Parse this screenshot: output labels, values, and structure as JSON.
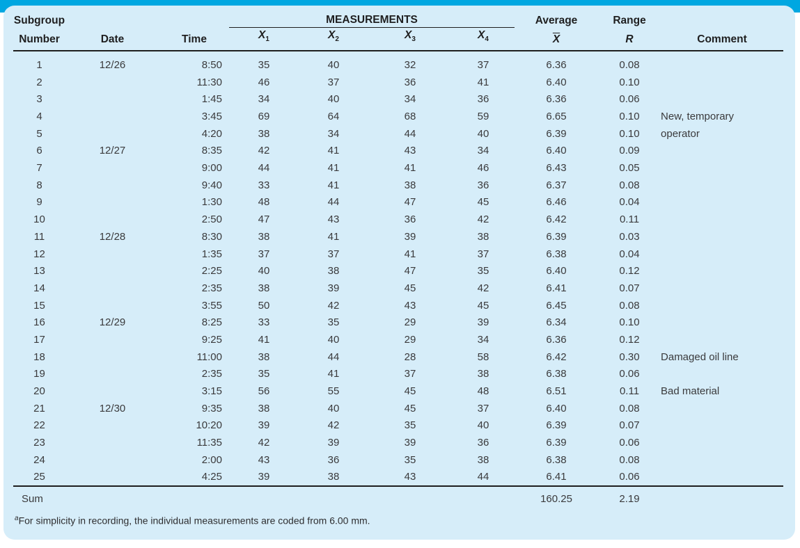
{
  "colors": {
    "top_bar": "#00A7E1",
    "panel_bg": "#D6EDF9",
    "rule": "#1E1E1E",
    "header_text": "#1F1F20",
    "body_text": "#3A3A3C"
  },
  "header": {
    "col1_line1": "Subgroup",
    "col1_line2": "Number",
    "date": "Date",
    "time": "Time",
    "measurements": "MEASUREMENTS",
    "x_base": "X",
    "x_subs": [
      "1",
      "2",
      "3",
      "4"
    ],
    "average": "Average",
    "xbar_base": "X",
    "range": "Range",
    "r_symbol": "R",
    "comment": "Comment"
  },
  "rows": [
    {
      "num": "1",
      "date": "12/26",
      "time": "8:50",
      "x1": "35",
      "x2": "40",
      "x3": "32",
      "x4": "37",
      "avg": "6.36",
      "r": "0.08",
      "comment": ""
    },
    {
      "num": "2",
      "date": "",
      "time": "11:30",
      "x1": "46",
      "x2": "37",
      "x3": "36",
      "x4": "41",
      "avg": "6.40",
      "r": "0.10",
      "comment": ""
    },
    {
      "num": "3",
      "date": "",
      "time": "1:45",
      "x1": "34",
      "x2": "40",
      "x3": "34",
      "x4": "36",
      "avg": "6.36",
      "r": "0.06",
      "comment": ""
    },
    {
      "num": "4",
      "date": "",
      "time": "3:45",
      "x1": "69",
      "x2": "64",
      "x3": "68",
      "x4": "59",
      "avg": "6.65",
      "r": "0.10",
      "comment": "New, temporary"
    },
    {
      "num": "5",
      "date": "",
      "time": "4:20",
      "x1": "38",
      "x2": "34",
      "x3": "44",
      "x4": "40",
      "avg": "6.39",
      "r": "0.10",
      "comment": "operator"
    },
    {
      "num": "6",
      "date": "12/27",
      "time": "8:35",
      "x1": "42",
      "x2": "41",
      "x3": "43",
      "x4": "34",
      "avg": "6.40",
      "r": "0.09",
      "comment": ""
    },
    {
      "num": "7",
      "date": "",
      "time": "9:00",
      "x1": "44",
      "x2": "41",
      "x3": "41",
      "x4": "46",
      "avg": "6.43",
      "r": "0.05",
      "comment": ""
    },
    {
      "num": "8",
      "date": "",
      "time": "9:40",
      "x1": "33",
      "x2": "41",
      "x3": "38",
      "x4": "36",
      "avg": "6.37",
      "r": "0.08",
      "comment": ""
    },
    {
      "num": "9",
      "date": "",
      "time": "1:30",
      "x1": "48",
      "x2": "44",
      "x3": "47",
      "x4": "45",
      "avg": "6.46",
      "r": "0.04",
      "comment": ""
    },
    {
      "num": "10",
      "date": "",
      "time": "2:50",
      "x1": "47",
      "x2": "43",
      "x3": "36",
      "x4": "42",
      "avg": "6.42",
      "r": "0.11",
      "comment": ""
    },
    {
      "num": "11",
      "date": "12/28",
      "time": "8:30",
      "x1": "38",
      "x2": "41",
      "x3": "39",
      "x4": "38",
      "avg": "6.39",
      "r": "0.03",
      "comment": ""
    },
    {
      "num": "12",
      "date": "",
      "time": "1:35",
      "x1": "37",
      "x2": "37",
      "x3": "41",
      "x4": "37",
      "avg": "6.38",
      "r": "0.04",
      "comment": ""
    },
    {
      "num": "13",
      "date": "",
      "time": "2:25",
      "x1": "40",
      "x2": "38",
      "x3": "47",
      "x4": "35",
      "avg": "6.40",
      "r": "0.12",
      "comment": ""
    },
    {
      "num": "14",
      "date": "",
      "time": "2:35",
      "x1": "38",
      "x2": "39",
      "x3": "45",
      "x4": "42",
      "avg": "6.41",
      "r": "0.07",
      "comment": ""
    },
    {
      "num": "15",
      "date": "",
      "time": "3:55",
      "x1": "50",
      "x2": "42",
      "x3": "43",
      "x4": "45",
      "avg": "6.45",
      "r": "0.08",
      "comment": ""
    },
    {
      "num": "16",
      "date": "12/29",
      "time": "8:25",
      "x1": "33",
      "x2": "35",
      "x3": "29",
      "x4": "39",
      "avg": "6.34",
      "r": "0.10",
      "comment": ""
    },
    {
      "num": "17",
      "date": "",
      "time": "9:25",
      "x1": "41",
      "x2": "40",
      "x3": "29",
      "x4": "34",
      "avg": "6.36",
      "r": "0.12",
      "comment": ""
    },
    {
      "num": "18",
      "date": "",
      "time": "11:00",
      "x1": "38",
      "x2": "44",
      "x3": "28",
      "x4": "58",
      "avg": "6.42",
      "r": "0.30",
      "comment": "Damaged oil line"
    },
    {
      "num": "19",
      "date": "",
      "time": "2:35",
      "x1": "35",
      "x2": "41",
      "x3": "37",
      "x4": "38",
      "avg": "6.38",
      "r": "0.06",
      "comment": ""
    },
    {
      "num": "20",
      "date": "",
      "time": "3:15",
      "x1": "56",
      "x2": "55",
      "x3": "45",
      "x4": "48",
      "avg": "6.51",
      "r": "0.11",
      "comment": "Bad material"
    },
    {
      "num": "21",
      "date": "12/30",
      "time": "9:35",
      "x1": "38",
      "x2": "40",
      "x3": "45",
      "x4": "37",
      "avg": "6.40",
      "r": "0.08",
      "comment": ""
    },
    {
      "num": "22",
      "date": "",
      "time": "10:20",
      "x1": "39",
      "x2": "42",
      "x3": "35",
      "x4": "40",
      "avg": "6.39",
      "r": "0.07",
      "comment": ""
    },
    {
      "num": "23",
      "date": "",
      "time": "11:35",
      "x1": "42",
      "x2": "39",
      "x3": "39",
      "x4": "36",
      "avg": "6.39",
      "r": "0.06",
      "comment": ""
    },
    {
      "num": "24",
      "date": "",
      "time": "2:00",
      "x1": "43",
      "x2": "36",
      "x3": "35",
      "x4": "38",
      "avg": "6.38",
      "r": "0.08",
      "comment": ""
    },
    {
      "num": "25",
      "date": "",
      "time": "4:25",
      "x1": "39",
      "x2": "38",
      "x3": "43",
      "x4": "44",
      "avg": "6.41",
      "r": "0.06",
      "comment": ""
    }
  ],
  "sum": {
    "label": "Sum",
    "average": "160.25",
    "range": "2.19"
  },
  "footnote": {
    "marker": "a",
    "text": "For simplicity in recording, the individual measurements are coded from 6.00 mm."
  }
}
